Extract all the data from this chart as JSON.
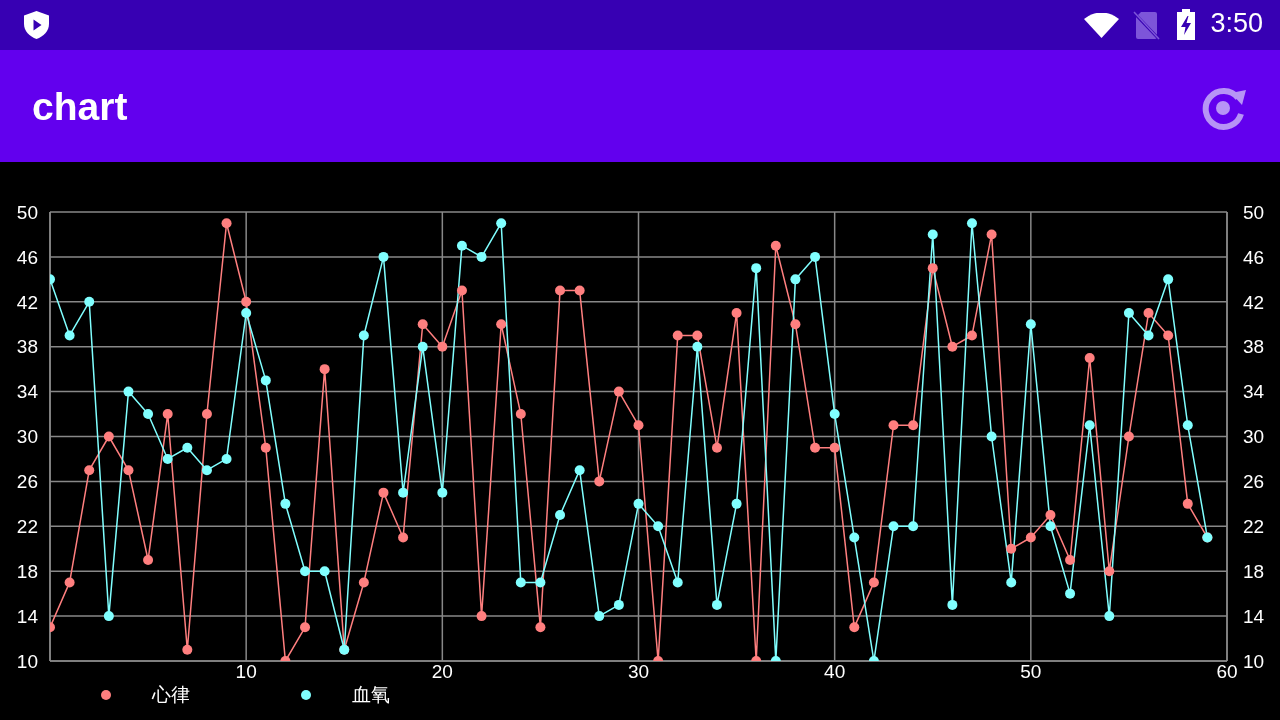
{
  "chart_data": {
    "type": "line",
    "title": "chart",
    "annotations": [
      "3:50"
    ],
    "x": [
      0,
      1,
      2,
      3,
      4,
      5,
      6,
      7,
      8,
      9,
      10,
      11,
      12,
      13,
      14,
      15,
      16,
      17,
      18,
      19,
      20,
      21,
      22,
      23,
      24,
      25,
      26,
      27,
      28,
      29,
      30,
      31,
      32,
      33,
      34,
      35,
      36,
      37,
      38,
      39,
      40,
      41,
      42,
      43,
      44,
      45,
      46,
      47,
      48,
      49,
      50,
      51,
      52,
      53,
      54,
      55,
      56,
      57,
      58,
      59
    ],
    "xlim": [
      0,
      60
    ],
    "xticks": [
      10,
      20,
      30,
      40,
      50,
      60
    ],
    "ylim": [
      10,
      50
    ],
    "yticks": [
      10,
      14,
      18,
      22,
      26,
      30,
      34,
      38,
      42,
      46,
      50
    ],
    "y2lim": [
      10,
      50
    ],
    "y2ticks": [
      10,
      14,
      18,
      22,
      26,
      30,
      34,
      38,
      42,
      46,
      50
    ],
    "grid": true,
    "legend": "bottom left",
    "marker": "circle",
    "series": [
      {
        "name": "心律",
        "color": "#ff7f7f",
        "values": [
          13,
          17,
          27,
          30,
          27,
          19,
          32,
          11,
          32,
          49,
          42,
          29,
          10,
          13,
          36,
          11,
          17,
          25,
          21,
          40,
          38,
          43,
          14,
          40,
          32,
          13,
          43,
          43,
          26,
          34,
          31,
          10,
          39,
          39,
          29,
          41,
          10,
          47,
          40,
          29,
          29,
          13,
          17,
          31,
          31,
          45,
          38,
          39,
          48,
          20,
          21,
          23,
          19,
          37,
          18,
          30,
          41,
          39,
          24,
          21
        ]
      },
      {
        "name": "血氧",
        "color": "#80ffff",
        "values": [
          44,
          39,
          42,
          14,
          34,
          32,
          28,
          29,
          27,
          28,
          41,
          35,
          24,
          18,
          18,
          11,
          39,
          46,
          25,
          38,
          25,
          47,
          46,
          49,
          17,
          17,
          23,
          27,
          14,
          15,
          24,
          22,
          17,
          38,
          15,
          24,
          45,
          10,
          44,
          46,
          32,
          21,
          10,
          22,
          22,
          48,
          15,
          49,
          30,
          17,
          40,
          22,
          16,
          31,
          14,
          41,
          39,
          44,
          31,
          21
        ]
      }
    ]
  }
}
